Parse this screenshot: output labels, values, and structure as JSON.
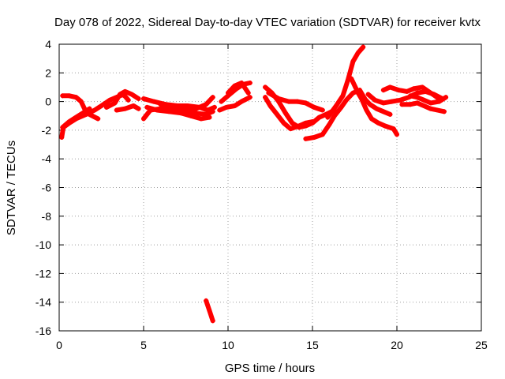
{
  "chart_data": {
    "type": "scatter",
    "title": "Day 078 of 2022, Sidereal Day-to-day VTEC variation (SDTVAR) for receiver kvtx",
    "xlabel": "GPS time / hours",
    "ylabel": "SDTVAR / TECUs",
    "xlim": [
      0,
      25
    ],
    "ylim": [
      -16,
      4
    ],
    "xticks": [
      0,
      5,
      10,
      15,
      20,
      25
    ],
    "yticks": [
      -16,
      -14,
      -12,
      -10,
      -8,
      -6,
      -4,
      -2,
      0,
      2,
      4
    ],
    "grid": true,
    "marker": "+",
    "series_color": "#ff0000",
    "tracks": [
      [
        [
          0.15,
          -2.5
        ],
        [
          0.25,
          -1.8
        ],
        [
          0.6,
          -1.5
        ],
        [
          1.0,
          -1.2
        ],
        [
          1.6,
          -0.9
        ],
        [
          2.1,
          -0.6
        ],
        [
          2.5,
          -0.3
        ],
        [
          3.0,
          0.1
        ],
        [
          3.4,
          0.3
        ],
        [
          3.8,
          0.5
        ],
        [
          4.1,
          0.1
        ]
      ],
      [
        [
          0.2,
          0.4
        ],
        [
          0.6,
          0.4
        ],
        [
          1.0,
          0.3
        ],
        [
          1.3,
          0.0
        ],
        [
          1.5,
          -0.5
        ],
        [
          1.8,
          -0.9
        ],
        [
          2.3,
          -1.2
        ]
      ],
      [
        [
          0.2,
          -1.8
        ],
        [
          0.6,
          -1.4
        ],
        [
          1.0,
          -1.1
        ],
        [
          1.4,
          -0.8
        ],
        [
          1.8,
          -0.5
        ]
      ],
      [
        [
          2.8,
          -0.4
        ],
        [
          3.3,
          -0.1
        ],
        [
          3.6,
          0.5
        ],
        [
          3.9,
          0.7
        ],
        [
          4.3,
          0.5
        ],
        [
          4.7,
          0.2
        ]
      ],
      [
        [
          3.4,
          -0.6
        ],
        [
          3.9,
          -0.5
        ],
        [
          4.4,
          -0.3
        ],
        [
          4.7,
          -0.5
        ]
      ],
      [
        [
          5.0,
          -1.2
        ],
        [
          5.4,
          -0.6
        ],
        [
          6.0,
          -0.5
        ],
        [
          6.7,
          -0.5
        ],
        [
          7.3,
          -0.6
        ],
        [
          8.0,
          -0.8
        ],
        [
          8.7,
          -0.9
        ],
        [
          9.1,
          -0.7
        ]
      ],
      [
        [
          5.0,
          0.2
        ],
        [
          5.6,
          0.0
        ],
        [
          6.3,
          -0.2
        ],
        [
          7.0,
          -0.3
        ],
        [
          7.6,
          -0.3
        ],
        [
          8.3,
          -0.4
        ],
        [
          8.8,
          -0.6
        ],
        [
          9.2,
          -0.4
        ]
      ],
      [
        [
          5.2,
          -0.4
        ],
        [
          5.8,
          -0.6
        ],
        [
          6.5,
          -0.7
        ],
        [
          7.2,
          -0.8
        ],
        [
          7.8,
          -1.0
        ],
        [
          8.4,
          -1.2
        ],
        [
          8.9,
          -1.1
        ]
      ],
      [
        [
          6.0,
          -0.2
        ],
        [
          6.6,
          -0.3
        ],
        [
          7.4,
          -0.4
        ],
        [
          8.1,
          -0.5
        ],
        [
          8.7,
          -0.2
        ],
        [
          9.1,
          0.3
        ]
      ],
      [
        [
          8.7,
          -13.9
        ],
        [
          8.9,
          -14.6
        ],
        [
          9.1,
          -15.3
        ]
      ],
      [
        [
          9.5,
          -0.6
        ],
        [
          9.9,
          -0.4
        ],
        [
          10.4,
          -0.3
        ],
        [
          10.8,
          0.0
        ],
        [
          11.3,
          0.3
        ]
      ],
      [
        [
          9.6,
          0.0
        ],
        [
          10.1,
          0.5
        ],
        [
          10.5,
          0.9
        ],
        [
          10.9,
          1.2
        ],
        [
          11.3,
          1.3
        ]
      ],
      [
        [
          10.0,
          0.6
        ],
        [
          10.4,
          1.1
        ],
        [
          10.8,
          1.3
        ],
        [
          11.2,
          0.6
        ]
      ],
      [
        [
          12.2,
          1.0
        ],
        [
          12.6,
          0.6
        ],
        [
          13.0,
          0.0
        ],
        [
          13.4,
          -0.8
        ],
        [
          13.8,
          -1.5
        ],
        [
          14.2,
          -1.8
        ],
        [
          14.6,
          -1.7
        ],
        [
          15.0,
          -1.5
        ],
        [
          15.4,
          -1.1
        ],
        [
          15.8,
          -0.9
        ],
        [
          16.3,
          -0.6
        ]
      ],
      [
        [
          12.2,
          0.3
        ],
        [
          12.5,
          -0.3
        ],
        [
          12.9,
          -0.9
        ],
        [
          13.3,
          -1.5
        ],
        [
          13.7,
          -1.9
        ],
        [
          14.2,
          -1.7
        ],
        [
          14.6,
          -1.5
        ],
        [
          15.0,
          -1.4
        ]
      ],
      [
        [
          12.4,
          0.6
        ],
        [
          13.0,
          0.2
        ],
        [
          13.6,
          0.0
        ],
        [
          14.1,
          0.0
        ],
        [
          14.6,
          -0.1
        ],
        [
          15.1,
          -0.4
        ],
        [
          15.6,
          -0.6
        ]
      ],
      [
        [
          14.6,
          -2.6
        ],
        [
          15.1,
          -2.5
        ],
        [
          15.6,
          -2.3
        ],
        [
          16.0,
          -1.6
        ],
        [
          16.3,
          -1.0
        ],
        [
          16.7,
          -0.4
        ],
        [
          17.0,
          0.1
        ],
        [
          17.4,
          0.6
        ],
        [
          17.8,
          0.8
        ],
        [
          18.1,
          0.2
        ]
      ],
      [
        [
          15.9,
          -1.1
        ],
        [
          16.4,
          -0.3
        ],
        [
          16.8,
          0.4
        ],
        [
          17.1,
          1.5
        ],
        [
          17.4,
          2.8
        ],
        [
          17.7,
          3.4
        ],
        [
          18.0,
          3.8
        ]
      ],
      [
        [
          17.3,
          1.6
        ],
        [
          17.5,
          1.1
        ],
        [
          17.7,
          0.6
        ],
        [
          17.9,
          0.2
        ],
        [
          18.2,
          -0.6
        ],
        [
          18.5,
          -1.2
        ],
        [
          18.9,
          -1.5
        ],
        [
          19.3,
          -1.7
        ],
        [
          19.8,
          -1.9
        ],
        [
          20.0,
          -2.3
        ]
      ],
      [
        [
          18.0,
          0.3
        ],
        [
          18.4,
          -0.2
        ],
        [
          18.8,
          -0.5
        ],
        [
          19.2,
          -0.7
        ],
        [
          19.6,
          -0.9
        ]
      ],
      [
        [
          18.3,
          0.5
        ],
        [
          18.7,
          0.1
        ],
        [
          19.2,
          -0.1
        ],
        [
          19.7,
          0.0
        ],
        [
          20.2,
          0.1
        ],
        [
          20.7,
          0.3
        ],
        [
          21.2,
          0.6
        ],
        [
          21.7,
          0.7
        ],
        [
          22.2,
          0.5
        ],
        [
          22.7,
          0.2
        ]
      ],
      [
        [
          19.2,
          0.8
        ],
        [
          19.6,
          1.0
        ],
        [
          20.1,
          0.8
        ],
        [
          20.6,
          0.7
        ],
        [
          21.0,
          0.9
        ],
        [
          21.5,
          1.0
        ],
        [
          22.0,
          0.6
        ],
        [
          22.5,
          0.2
        ]
      ],
      [
        [
          20.3,
          -0.2
        ],
        [
          20.8,
          -0.2
        ],
        [
          21.2,
          -0.1
        ],
        [
          21.6,
          -0.3
        ],
        [
          22.0,
          -0.5
        ],
        [
          22.4,
          -0.6
        ],
        [
          22.8,
          -0.7
        ]
      ],
      [
        [
          20.8,
          0.4
        ],
        [
          21.2,
          0.3
        ],
        [
          21.6,
          0.1
        ],
        [
          22.0,
          -0.1
        ],
        [
          22.5,
          0.0
        ],
        [
          22.9,
          0.3
        ]
      ]
    ]
  }
}
